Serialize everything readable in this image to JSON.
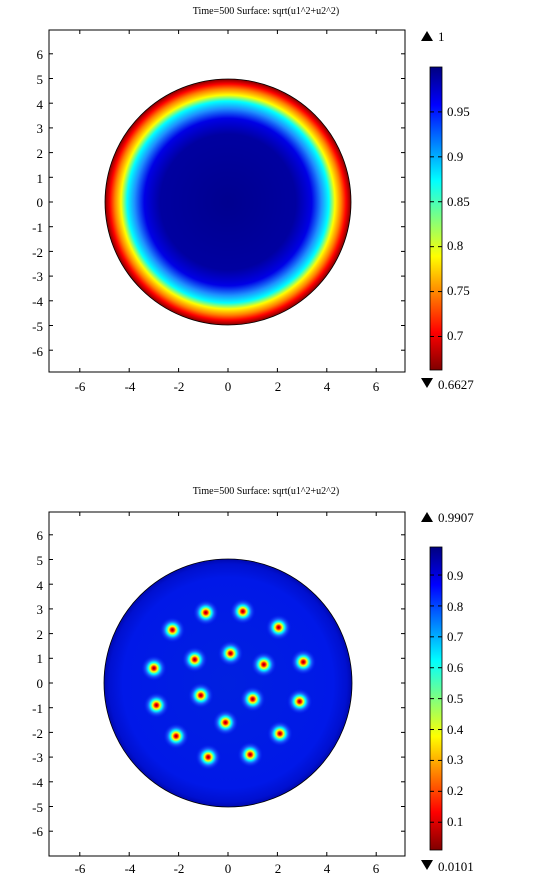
{
  "charts": [
    {
      "title": "Time=500  Surface: sqrt(u1^2+u2^2)",
      "colorbar_max_label": "1",
      "colorbar_min_label": "0.6627",
      "colorbar_ticks": [
        "0.95",
        "0.9",
        "0.85",
        "0.8",
        "0.75",
        "0.7"
      ],
      "x_ticks": [
        "-6",
        "-4",
        "-2",
        "0",
        "2",
        "4",
        "6"
      ],
      "y_ticks": [
        "6",
        "5",
        "4",
        "3",
        "2",
        "1",
        "0",
        "-1",
        "-2",
        "-3",
        "-4",
        "-5",
        "-6"
      ]
    },
    {
      "title": "Time=500  Surface: sqrt(u1^2+u2^2)",
      "colorbar_max_label": "0.9907",
      "colorbar_min_label": "0.0101",
      "colorbar_ticks": [
        "0.9",
        "0.8",
        "0.7",
        "0.6",
        "0.5",
        "0.4",
        "0.3",
        "0.2",
        "0.1"
      ],
      "x_ticks": [
        "-6",
        "-4",
        "-2",
        "0",
        "2",
        "4",
        "6"
      ],
      "y_ticks": [
        "6",
        "5",
        "4",
        "3",
        "2",
        "1",
        "0",
        "-1",
        "-2",
        "-3",
        "-4",
        "-5",
        "-6"
      ]
    }
  ],
  "chart_data": [
    {
      "type": "heatmap",
      "title": "Time=500  Surface: sqrt(u1^2+u2^2)",
      "xlim": [
        -7.5,
        7.5
      ],
      "ylim": [
        -7,
        7
      ],
      "domain": {
        "shape": "disk",
        "center": [
          0,
          0
        ],
        "radius": 5
      },
      "colorbar": {
        "min": 0.6627,
        "max": 1,
        "ticks": [
          0.95,
          0.9,
          0.85,
          0.8,
          0.75,
          0.7
        ],
        "colormap": "jet"
      },
      "field": "radially symmetric; near 1 in the interior, decreasing to about 0.66 at the boundary ring"
    },
    {
      "type": "heatmap",
      "title": "Time=500  Surface: sqrt(u1^2+u2^2)",
      "xlim": [
        -7.5,
        7.5
      ],
      "ylim": [
        -7,
        7
      ],
      "domain": {
        "shape": "disk",
        "center": [
          0,
          0
        ],
        "radius": 5
      },
      "colorbar": {
        "min": 0.0101,
        "max": 0.9907,
        "ticks": [
          0.9,
          0.8,
          0.7,
          0.6,
          0.5,
          0.4,
          0.3,
          0.2,
          0.1
        ],
        "colormap": "jet"
      },
      "background_value": 0.93,
      "vortices_min_value": 0.0101,
      "vortices": [
        [
          -0.9,
          2.85
        ],
        [
          0.6,
          2.9
        ],
        [
          -2.25,
          2.15
        ],
        [
          2.05,
          2.25
        ],
        [
          -3.0,
          0.6
        ],
        [
          -1.35,
          0.95
        ],
        [
          0.1,
          1.2
        ],
        [
          1.45,
          0.75
        ],
        [
          3.05,
          0.85
        ],
        [
          -2.9,
          -0.9
        ],
        [
          -1.1,
          -0.5
        ],
        [
          1.0,
          -0.65
        ],
        [
          2.9,
          -0.75
        ],
        [
          -0.1,
          -1.6
        ],
        [
          -2.1,
          -2.15
        ],
        [
          2.1,
          -2.05
        ],
        [
          -0.8,
          -3.0
        ],
        [
          0.9,
          -2.9
        ]
      ]
    }
  ]
}
